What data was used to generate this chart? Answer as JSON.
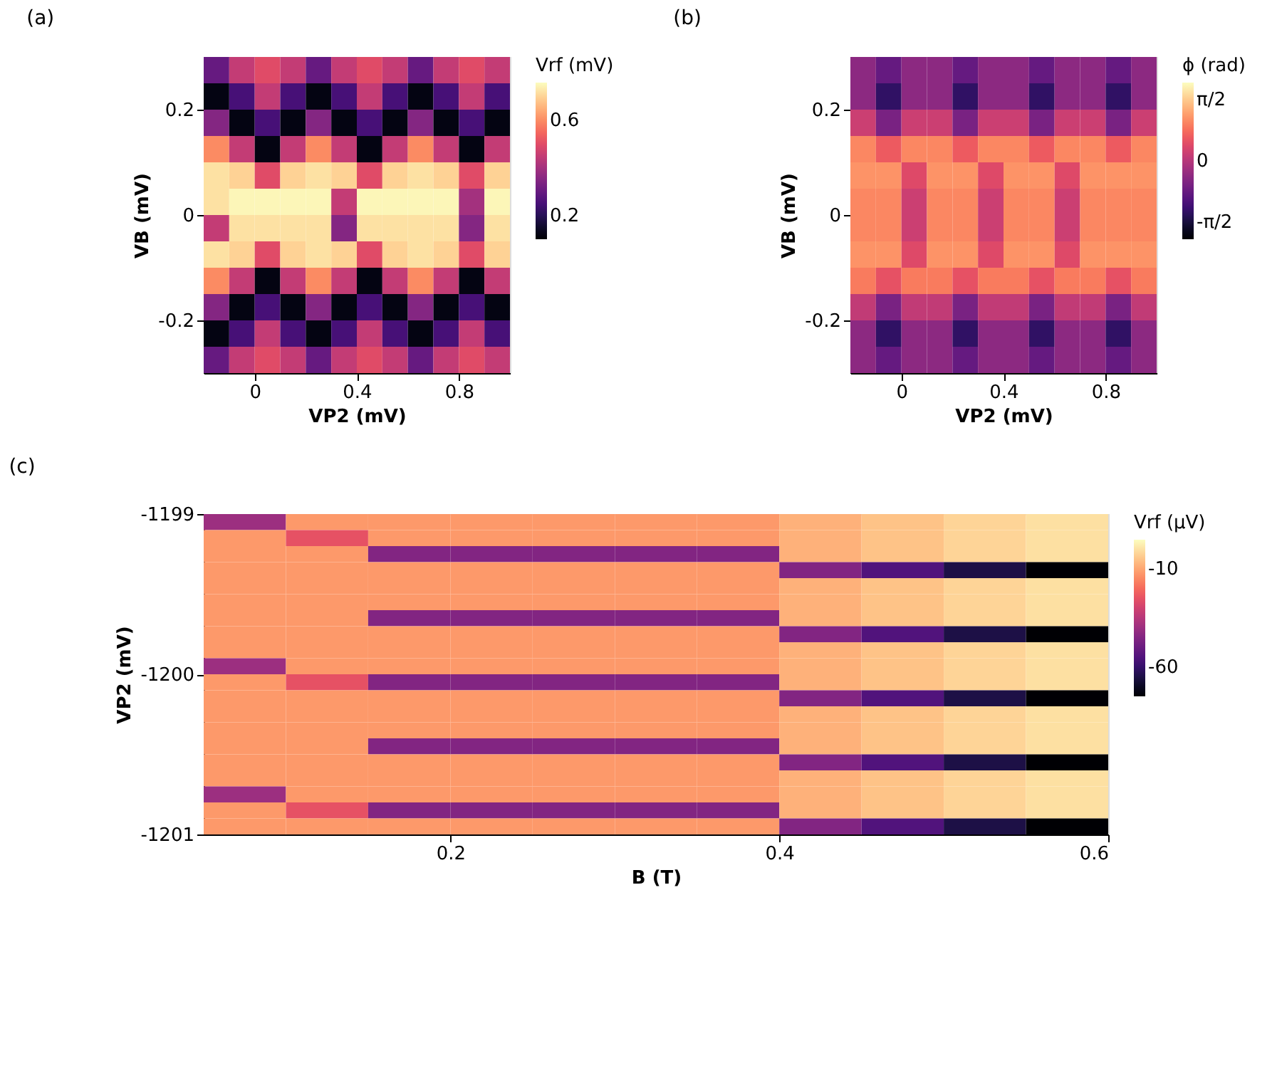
{
  "chart_data": [
    {
      "type": "heatmap",
      "title": "(a)",
      "xlabel": "VP2 (mV)",
      "ylabel": "VB (mV)",
      "clabel": "Vrf (mV)",
      "xlim": [
        -0.2,
        1.0
      ],
      "ylim": [
        -0.3,
        0.3
      ],
      "xticks": [
        0,
        0.4,
        0.8
      ],
      "yticks": [
        -0.2,
        {
          "value": 0,
          "label": "0"
        },
        0.2
      ],
      "clim": [
        0.1,
        0.76
      ],
      "cticks": [
        0.2,
        0.6
      ],
      "cells": [
        [
          0.3,
          0.45,
          0.5,
          0.45,
          0.3,
          0.45,
          0.5,
          0.45,
          0.3,
          0.45,
          0.5,
          0.45
        ],
        [
          0.12,
          0.25,
          0.45,
          0.25,
          0.12,
          0.25,
          0.45,
          0.25,
          0.12,
          0.25,
          0.45,
          0.25
        ],
        [
          0.35,
          0.12,
          0.25,
          0.12,
          0.35,
          0.12,
          0.25,
          0.12,
          0.35,
          0.12,
          0.25,
          0.12
        ],
        [
          0.6,
          0.45,
          0.12,
          0.45,
          0.6,
          0.45,
          0.12,
          0.45,
          0.6,
          0.45,
          0.12,
          0.45
        ],
        [
          0.72,
          0.7,
          0.5,
          0.7,
          0.72,
          0.7,
          0.5,
          0.7,
          0.72,
          0.7,
          0.5,
          0.7
        ],
        [
          0.72,
          0.75,
          0.75,
          0.75,
          0.75,
          0.45,
          0.75,
          0.75,
          0.75,
          0.75,
          0.4,
          0.75
        ],
        [
          0.45,
          0.72,
          0.72,
          0.72,
          0.72,
          0.35,
          0.72,
          0.72,
          0.72,
          0.72,
          0.35,
          0.72
        ],
        [
          0.72,
          0.7,
          0.5,
          0.7,
          0.72,
          0.7,
          0.5,
          0.7,
          0.72,
          0.7,
          0.5,
          0.7
        ],
        [
          0.6,
          0.45,
          0.12,
          0.45,
          0.6,
          0.45,
          0.12,
          0.45,
          0.6,
          0.45,
          0.12,
          0.45
        ],
        [
          0.35,
          0.12,
          0.25,
          0.12,
          0.35,
          0.12,
          0.25,
          0.12,
          0.35,
          0.12,
          0.25,
          0.12
        ],
        [
          0.12,
          0.25,
          0.45,
          0.25,
          0.12,
          0.25,
          0.45,
          0.25,
          0.12,
          0.25,
          0.45,
          0.25
        ],
        [
          0.3,
          0.45,
          0.5,
          0.45,
          0.3,
          0.45,
          0.5,
          0.45,
          0.3,
          0.45,
          0.5,
          0.45
        ]
      ]
    },
    {
      "type": "heatmap",
      "title": "(b)",
      "xlabel": "VP2 (mV)",
      "ylabel": "VB (mV)",
      "clabel": "ϕ (rad)",
      "xlim": [
        -0.2,
        1.0
      ],
      "ylim": [
        -0.3,
        0.3
      ],
      "xticks": [
        0,
        0.4,
        0.8
      ],
      "yticks": [
        -0.2,
        {
          "value": 0,
          "label": "0"
        },
        0.2
      ],
      "clim": [
        -2,
        2
      ],
      "cticks": [
        {
          "value": -1.5708,
          "label": "-π/2"
        },
        0,
        {
          "value": 1.5708,
          "label": "π/2"
        }
      ],
      "cells": [
        [
          -0.4,
          -0.8,
          -0.4,
          -0.4,
          -0.8,
          -0.4,
          -0.4,
          -0.8,
          -0.4,
          -0.4,
          -0.8,
          -0.4
        ],
        [
          -0.4,
          -1.3,
          -0.4,
          -0.4,
          -1.3,
          -0.4,
          -0.4,
          -1.3,
          -0.4,
          -0.4,
          -1.3,
          -0.4
        ],
        [
          0.2,
          -0.6,
          0.2,
          0.2,
          -0.6,
          0.2,
          0.2,
          -0.6,
          0.2,
          0.2,
          -0.6,
          0.2
        ],
        [
          1.0,
          0.6,
          1.0,
          1.0,
          0.6,
          1.0,
          1.0,
          0.6,
          1.0,
          1.0,
          0.6,
          1.0
        ],
        [
          1.1,
          1.1,
          0.4,
          1.1,
          1.1,
          0.4,
          1.1,
          1.1,
          0.4,
          1.1,
          1.1,
          1.1
        ],
        [
          1.0,
          1.0,
          0.2,
          1.0,
          1.0,
          0.2,
          1.0,
          1.0,
          0.2,
          1.0,
          1.0,
          1.0
        ],
        [
          1.0,
          1.0,
          0.2,
          1.0,
          1.0,
          0.2,
          1.0,
          1.0,
          0.2,
          1.0,
          1.0,
          1.0
        ],
        [
          1.1,
          1.1,
          0.4,
          1.1,
          1.1,
          0.4,
          1.1,
          1.1,
          0.4,
          1.1,
          1.1,
          1.1
        ],
        [
          0.9,
          0.5,
          0.9,
          0.9,
          0.5,
          0.9,
          0.9,
          0.5,
          0.9,
          0.9,
          0.5,
          0.9
        ],
        [
          0.1,
          -0.6,
          0.1,
          0.1,
          -0.6,
          0.1,
          0.1,
          -0.6,
          0.1,
          0.1,
          -0.6,
          0.1
        ],
        [
          -0.4,
          -1.3,
          -0.4,
          -0.4,
          -1.3,
          -0.4,
          -0.4,
          -1.3,
          -0.4,
          -0.4,
          -1.3,
          -0.4
        ],
        [
          -0.4,
          -0.8,
          -0.4,
          -0.4,
          -0.8,
          -0.4,
          -0.4,
          -0.8,
          -0.4,
          -0.4,
          -0.8,
          -0.4
        ]
      ]
    },
    {
      "type": "heatmap",
      "title": "(c)",
      "xlabel": "B (T)",
      "ylabel": "VP2 (mV)",
      "clabel": "Vrf (µV)",
      "xlim": [
        0.05,
        0.6
      ],
      "ylim": [
        -1201,
        -1199
      ],
      "xticks": [
        0.2,
        0.4,
        0.6
      ],
      "yticks": [
        -1201,
        -1200,
        -1199
      ],
      "clim": [
        -75,
        5
      ],
      "cticks": [
        -60,
        -10
      ],
      "cells": [
        [
          -40,
          -12,
          -12,
          -12,
          -12,
          -12,
          -12,
          -8,
          -5,
          -2,
          0
        ],
        [
          -12,
          -25,
          -12,
          -12,
          -12,
          -12,
          -12,
          -8,
          -5,
          -2,
          0
        ],
        [
          -12,
          -12,
          -45,
          -45,
          -45,
          -45,
          -45,
          -8,
          -5,
          -2,
          0
        ],
        [
          -12,
          -12,
          -12,
          -12,
          -12,
          -12,
          -12,
          -45,
          -55,
          -65,
          -75
        ],
        [
          -12,
          -12,
          -12,
          -12,
          -12,
          -12,
          -12,
          -8,
          -5,
          -2,
          0
        ],
        [
          -12,
          -12,
          -12,
          -12,
          -12,
          -12,
          -12,
          -8,
          -5,
          -2,
          0
        ],
        [
          -12,
          -12,
          -45,
          -45,
          -45,
          -45,
          -45,
          -8,
          -5,
          -2,
          0
        ],
        [
          -12,
          -12,
          -12,
          -12,
          -12,
          -12,
          -12,
          -45,
          -55,
          -65,
          -75
        ],
        [
          -12,
          -12,
          -12,
          -12,
          -12,
          -12,
          -12,
          -8,
          -5,
          -2,
          0
        ],
        [
          -40,
          -12,
          -12,
          -12,
          -12,
          -12,
          -12,
          -8,
          -5,
          -2,
          0
        ],
        [
          -12,
          -25,
          -45,
          -45,
          -45,
          -45,
          -45,
          -8,
          -5,
          -2,
          0
        ],
        [
          -12,
          -12,
          -12,
          -12,
          -12,
          -12,
          -12,
          -45,
          -55,
          -65,
          -75
        ],
        [
          -12,
          -12,
          -12,
          -12,
          -12,
          -12,
          -12,
          -8,
          -5,
          -2,
          0
        ],
        [
          -12,
          -12,
          -12,
          -12,
          -12,
          -12,
          -12,
          -8,
          -5,
          -2,
          0
        ],
        [
          -12,
          -12,
          -45,
          -45,
          -45,
          -45,
          -45,
          -8,
          -5,
          -2,
          0
        ],
        [
          -12,
          -12,
          -12,
          -12,
          -12,
          -12,
          -12,
          -45,
          -55,
          -65,
          -75
        ],
        [
          -12,
          -12,
          -12,
          -12,
          -12,
          -12,
          -12,
          -8,
          -5,
          -2,
          0
        ],
        [
          -40,
          -12,
          -12,
          -12,
          -12,
          -12,
          -12,
          -8,
          -5,
          -2,
          0
        ],
        [
          -12,
          -25,
          -45,
          -45,
          -45,
          -45,
          -45,
          -8,
          -5,
          -2,
          0
        ],
        [
          -12,
          -12,
          -12,
          -12,
          -12,
          -12,
          -12,
          -45,
          -55,
          -65,
          -75
        ]
      ]
    }
  ]
}
